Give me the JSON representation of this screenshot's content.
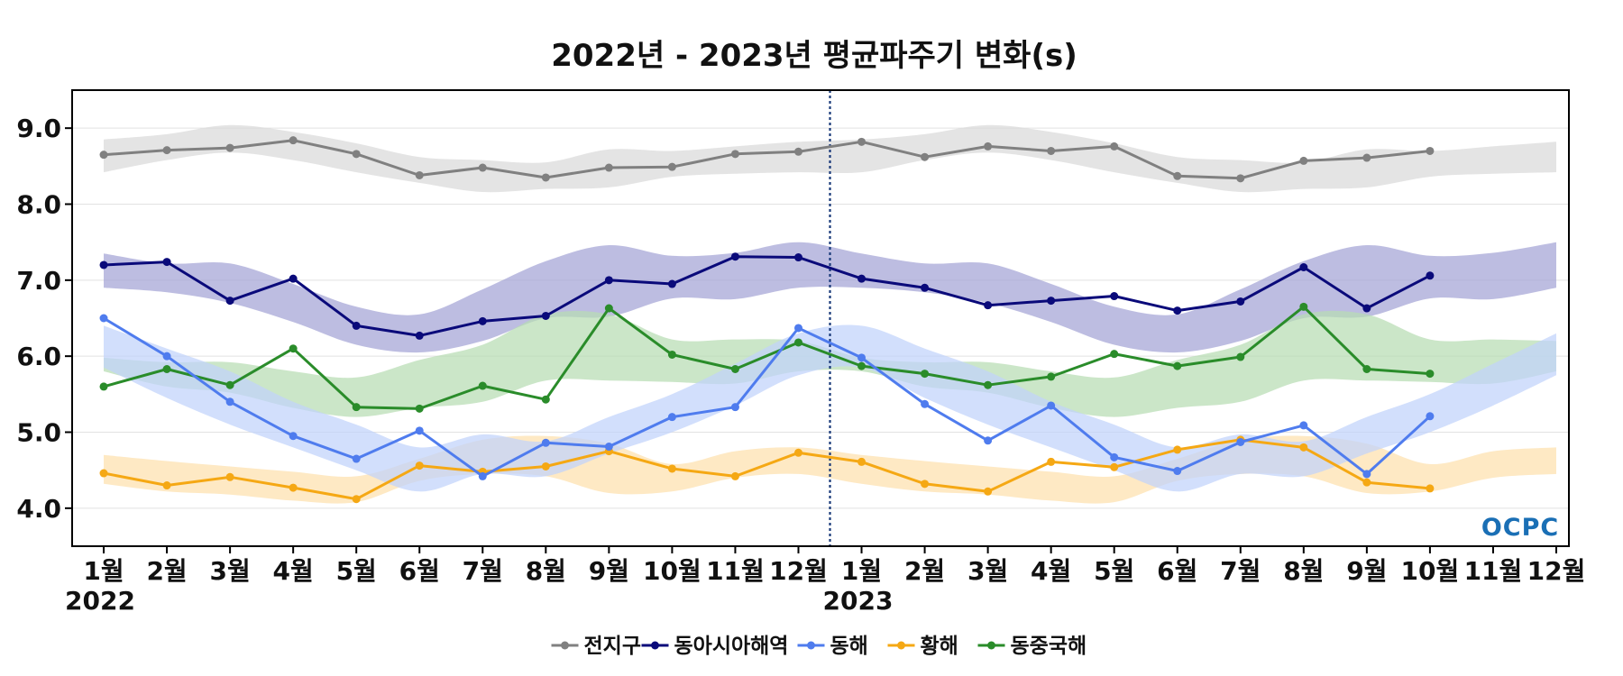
{
  "chart_data": {
    "type": "line",
    "title": "2022년 - 2023년 평균파주기 변화(s)",
    "xlabel": "",
    "ylabel": "",
    "x_tick_labels": [
      "1월",
      "2월",
      "3월",
      "4월",
      "5월",
      "6월",
      "7월",
      "8월",
      "9월",
      "10월",
      "11월",
      "12월",
      "1월",
      "2월",
      "3월",
      "4월",
      "5월",
      "6월",
      "7월",
      "8월",
      "9월",
      "10월",
      "11월",
      "12월"
    ],
    "year_labels": [
      {
        "label": "2022",
        "at_index": 0
      },
      {
        "label": "2023",
        "at_index": 12
      }
    ],
    "divider_after_index": 11.5,
    "y_ticks": [
      "4.0",
      "5.0",
      "6.0",
      "7.0",
      "8.0",
      "9.0"
    ],
    "y_tick_values": [
      4,
      5,
      6,
      7,
      8,
      9
    ],
    "ylim": [
      3.5,
      9.5
    ],
    "xlim": [
      -0.5,
      23.2
    ],
    "grid": "horizontal",
    "legend_position": "bottom-center",
    "series": [
      {
        "name": "전지구",
        "color": "#808080",
        "band_color": "#d9d9d9",
        "values": [
          8.65,
          8.71,
          8.74,
          8.84,
          8.66,
          8.38,
          8.48,
          8.35,
          8.48,
          8.49,
          8.66,
          8.69,
          8.82,
          8.62,
          8.76,
          8.7,
          8.76,
          8.37,
          8.34,
          8.57,
          8.61,
          8.7,
          null,
          null
        ],
        "band_upper": [
          8.85,
          8.92,
          9.04,
          8.95,
          8.8,
          8.62,
          8.58,
          8.55,
          8.72,
          8.7,
          8.76,
          8.82,
          8.85,
          8.92,
          9.04,
          8.95,
          8.8,
          8.62,
          8.58,
          8.55,
          8.72,
          8.7,
          8.76,
          8.82
        ],
        "band_lower": [
          8.42,
          8.58,
          8.68,
          8.58,
          8.42,
          8.28,
          8.16,
          8.2,
          8.22,
          8.36,
          8.4,
          8.42,
          8.42,
          8.58,
          8.68,
          8.58,
          8.42,
          8.28,
          8.16,
          8.2,
          8.22,
          8.36,
          8.4,
          8.42
        ]
      },
      {
        "name": "동아시아해역",
        "color": "#0a0a7a",
        "band_color": "#a4a4d6",
        "values": [
          7.2,
          7.24,
          6.73,
          7.02,
          6.4,
          6.27,
          6.46,
          6.53,
          7.0,
          6.95,
          7.31,
          7.3,
          7.02,
          6.9,
          6.67,
          6.73,
          6.79,
          6.6,
          6.72,
          7.17,
          6.63,
          7.06,
          null,
          null
        ],
        "band_upper": [
          7.35,
          7.22,
          7.22,
          6.95,
          6.65,
          6.55,
          6.88,
          7.25,
          7.46,
          7.32,
          7.36,
          7.5,
          7.35,
          7.22,
          7.22,
          6.95,
          6.65,
          6.55,
          6.88,
          7.25,
          7.46,
          7.32,
          7.36,
          7.5
        ],
        "band_lower": [
          6.9,
          6.84,
          6.7,
          6.45,
          6.15,
          6.05,
          6.2,
          6.5,
          6.52,
          6.76,
          6.75,
          6.9,
          6.9,
          6.84,
          6.7,
          6.45,
          6.15,
          6.05,
          6.2,
          6.5,
          6.52,
          6.76,
          6.75,
          6.9
        ]
      },
      {
        "name": "동해",
        "color": "#4f7cee",
        "band_color": "#c1d2fb",
        "values": [
          6.5,
          6.0,
          5.4,
          4.95,
          4.65,
          5.02,
          4.42,
          4.86,
          4.81,
          5.2,
          5.33,
          6.37,
          5.98,
          5.37,
          4.89,
          5.35,
          4.67,
          4.49,
          4.87,
          5.09,
          4.45,
          5.21,
          null,
          null
        ],
        "band_upper": [
          6.4,
          6.1,
          5.8,
          5.4,
          5.1,
          4.8,
          4.97,
          4.88,
          5.2,
          5.5,
          5.9,
          6.3,
          6.4,
          6.1,
          5.8,
          5.4,
          5.1,
          4.8,
          4.97,
          4.88,
          5.2,
          5.5,
          5.9,
          6.3
        ],
        "band_lower": [
          5.85,
          5.45,
          5.1,
          4.8,
          4.5,
          4.22,
          4.45,
          4.42,
          4.72,
          5.0,
          5.35,
          5.75,
          5.85,
          5.45,
          5.1,
          4.8,
          4.5,
          4.22,
          4.45,
          4.42,
          4.72,
          5.0,
          5.35,
          5.75
        ]
      },
      {
        "name": "황해",
        "color": "#f5a814",
        "band_color": "#fde1ad",
        "values": [
          4.46,
          4.3,
          4.41,
          4.27,
          4.12,
          4.56,
          4.48,
          4.55,
          4.75,
          4.52,
          4.42,
          4.73,
          4.61,
          4.32,
          4.22,
          4.61,
          4.54,
          4.77,
          4.9,
          4.8,
          4.34,
          4.26,
          null,
          null
        ],
        "band_upper": [
          4.7,
          4.62,
          4.55,
          4.48,
          4.42,
          4.65,
          4.9,
          4.95,
          4.85,
          4.58,
          4.75,
          4.8,
          4.7,
          4.62,
          4.55,
          4.48,
          4.42,
          4.65,
          4.9,
          4.95,
          4.85,
          4.58,
          4.75,
          4.8
        ],
        "band_lower": [
          4.32,
          4.22,
          4.18,
          4.1,
          4.08,
          4.36,
          4.45,
          4.42,
          4.2,
          4.22,
          4.4,
          4.45,
          4.32,
          4.22,
          4.18,
          4.1,
          4.08,
          4.36,
          4.45,
          4.42,
          4.2,
          4.22,
          4.4,
          4.45
        ]
      },
      {
        "name": "동중국해",
        "color": "#2a8c2a",
        "band_color": "#b7ddb3",
        "values": [
          5.6,
          5.83,
          5.62,
          6.1,
          5.33,
          5.31,
          5.61,
          5.43,
          6.63,
          6.02,
          5.83,
          6.18,
          5.87,
          5.77,
          5.62,
          5.73,
          6.03,
          5.87,
          5.99,
          6.65,
          5.83,
          5.77,
          null,
          null
        ],
        "band_upper": [
          5.98,
          5.92,
          5.92,
          5.8,
          5.72,
          5.95,
          6.15,
          6.55,
          6.55,
          6.22,
          6.22,
          6.2,
          5.98,
          5.92,
          5.92,
          5.8,
          5.72,
          5.95,
          6.15,
          6.55,
          6.55,
          6.22,
          6.22,
          6.2
        ],
        "band_lower": [
          5.8,
          5.6,
          5.52,
          5.32,
          5.2,
          5.32,
          5.4,
          5.68,
          5.68,
          5.66,
          5.64,
          5.8,
          5.8,
          5.6,
          5.52,
          5.32,
          5.2,
          5.32,
          5.4,
          5.68,
          5.68,
          5.66,
          5.64,
          5.8
        ]
      }
    ]
  },
  "logo": {
    "text": "OCPC"
  }
}
